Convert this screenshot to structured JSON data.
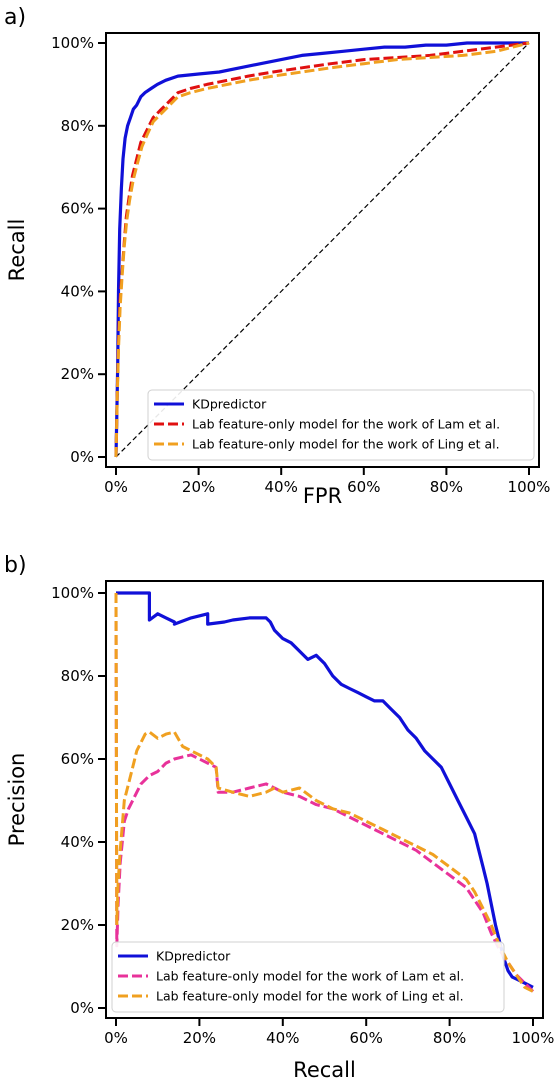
{
  "chart_data": [
    {
      "type": "line",
      "panel_label": "a)",
      "xlabel": "FPR",
      "ylabel": "Recall",
      "xlim": [
        0,
        100
      ],
      "ylim": [
        0,
        100
      ],
      "xticks": [
        "0%",
        "20%",
        "40%",
        "60%",
        "80%",
        "100%"
      ],
      "yticks": [
        "0%",
        "20%",
        "40%",
        "60%",
        "80%",
        "100%"
      ],
      "legend_position": "lower-right",
      "series": [
        {
          "name": "KDpredictor",
          "color": "#1010d8",
          "style": "solid",
          "x": [
            0,
            0.2,
            0.4,
            0.6,
            0.9,
            1.3,
            1.7,
            2.2,
            2.8,
            3.5,
            4.2,
            5.0,
            6.0,
            7.0,
            8.5,
            10,
            12,
            15,
            20,
            25,
            30,
            35,
            40,
            45,
            50,
            55,
            60,
            65,
            70,
            75,
            80,
            85,
            90,
            95,
            100
          ],
          "y": [
            0,
            10,
            22,
            40,
            55,
            65,
            72,
            77,
            80,
            82,
            84,
            85,
            87,
            88,
            89,
            90,
            91,
            92,
            92.5,
            93,
            94,
            95,
            96,
            97,
            97.5,
            98,
            98.5,
            99,
            99,
            99.5,
            99.5,
            100,
            100,
            100,
            100
          ]
        },
        {
          "name": "Lab feature-only model for the work of Lam et al.",
          "color": "#e01010",
          "style": "dashed",
          "x": [
            0,
            0.3,
            0.6,
            1.0,
            1.5,
            2.0,
            2.5,
            3.2,
            4.0,
            5.0,
            6.0,
            7.5,
            9,
            11,
            13,
            15,
            18,
            22,
            27,
            32,
            38,
            45,
            52,
            60,
            68,
            76,
            84,
            92,
            100
          ],
          "y": [
            0,
            15,
            28,
            38,
            45,
            52,
            58,
            63,
            68,
            72,
            76,
            79,
            82,
            84,
            86,
            88,
            89,
            90,
            91,
            92,
            93,
            94,
            95,
            96,
            96.5,
            97,
            98,
            99,
            100
          ]
        },
        {
          "name": "Lab feature-only model for the work of Ling et al.",
          "color": "#f0a020",
          "style": "dashed",
          "x": [
            0,
            0.3,
            0.6,
            1.0,
            1.5,
            2.0,
            2.6,
            3.3,
            4.2,
            5.2,
            6.3,
            7.6,
            9,
            11,
            13,
            15,
            18,
            22,
            27,
            32,
            38,
            45,
            52,
            60,
            68,
            76,
            84,
            92,
            100
          ],
          "y": [
            0,
            14,
            26,
            36,
            44,
            51,
            57,
            62,
            67,
            71,
            75,
            78,
            81,
            83,
            85,
            87,
            88,
            89,
            90,
            91,
            92,
            93,
            94,
            95,
            96,
            96.5,
            97,
            98,
            100
          ]
        },
        {
          "name": "",
          "color": "#000000",
          "style": "diagonal",
          "x": [
            0,
            100
          ],
          "y": [
            0,
            100
          ]
        }
      ]
    },
    {
      "type": "line",
      "panel_label": "b)",
      "xlabel": "Recall",
      "ylabel": "Precision",
      "xlim": [
        0,
        100
      ],
      "ylim": [
        0,
        100
      ],
      "xticks": [
        "0%",
        "20%",
        "40%",
        "60%",
        "80%",
        "100%"
      ],
      "yticks": [
        "0%",
        "20%",
        "40%",
        "60%",
        "80%",
        "100%"
      ],
      "legend_position": "lower-left",
      "series": [
        {
          "name": "KDpredictor",
          "color": "#1010d8",
          "style": "solid",
          "x": [
            0,
            2,
            4,
            6,
            8,
            8,
            10,
            12,
            14,
            14,
            18,
            22,
            22,
            26,
            28,
            32,
            36,
            37,
            38,
            40,
            42,
            44,
            46,
            48,
            50,
            52,
            54,
            56,
            58,
            60,
            62,
            64,
            66,
            68,
            70,
            72,
            74,
            76,
            78,
            80,
            82,
            84,
            86,
            87,
            88,
            89,
            90,
            91,
            92,
            93,
            94,
            95,
            96,
            98,
            100
          ],
          "y": [
            100,
            100,
            100,
            100,
            100,
            93.5,
            95,
            94,
            93,
            92.5,
            94,
            95,
            92.5,
            93,
            93.5,
            94,
            94,
            93,
            91,
            89,
            88,
            86,
            84,
            85,
            83,
            80,
            78,
            77,
            76,
            75,
            74,
            74,
            72,
            70,
            67,
            65,
            62,
            60,
            58,
            54,
            50,
            46,
            42,
            38,
            34,
            30,
            25,
            20,
            16,
            12,
            9,
            7.5,
            7,
            6,
            5
          ]
        },
        {
          "name": "Lab feature-only model for the work of Lam et al.",
          "color": "#e8329a",
          "style": "dashed",
          "x": [
            0,
            0.2,
            0.5,
            1.0,
            1.5,
            2.0,
            3.0,
            4.0,
            5.0,
            6,
            8,
            10,
            12,
            14,
            16,
            18,
            20,
            22,
            24,
            24.5,
            28,
            32,
            36,
            38,
            40,
            44,
            48,
            52,
            56,
            60,
            64,
            68,
            72,
            76,
            80,
            84,
            86,
            88,
            90,
            92,
            94,
            96,
            98,
            100
          ],
          "y": [
            100,
            15,
            25,
            35,
            40,
            45,
            48,
            50,
            52,
            54,
            56,
            57,
            59,
            60,
            60.5,
            61,
            60,
            59,
            58,
            52,
            52,
            53,
            54,
            53,
            52,
            51,
            49,
            48,
            46,
            44,
            42,
            40,
            38,
            35,
            32,
            29,
            26,
            23,
            18,
            14,
            11,
            8,
            6,
            4
          ]
        },
        {
          "name": "Lab feature-only model for the work of Ling et al.",
          "color": "#f0a020",
          "style": "dashed",
          "x": [
            0,
            0.2,
            0.5,
            1.0,
            1.5,
            2.0,
            3.0,
            4.0,
            5.0,
            6,
            7,
            8,
            10,
            12,
            14,
            16,
            18,
            20,
            22,
            24,
            24.5,
            28,
            32,
            36,
            38,
            40,
            44,
            48,
            52,
            56,
            60,
            64,
            68,
            72,
            76,
            80,
            84,
            86,
            88,
            90,
            92,
            94,
            96,
            98,
            100
          ],
          "y": [
            100,
            20,
            30,
            38,
            44,
            50,
            54,
            58,
            62,
            64,
            66,
            66.5,
            65,
            66,
            66.5,
            63,
            62,
            61,
            60,
            58,
            53,
            52,
            51,
            52,
            53,
            52,
            53,
            50,
            48,
            47,
            45,
            43,
            41,
            39,
            37,
            34,
            31,
            28,
            24,
            20,
            15,
            11,
            8,
            5,
            4
          ]
        }
      ]
    }
  ]
}
